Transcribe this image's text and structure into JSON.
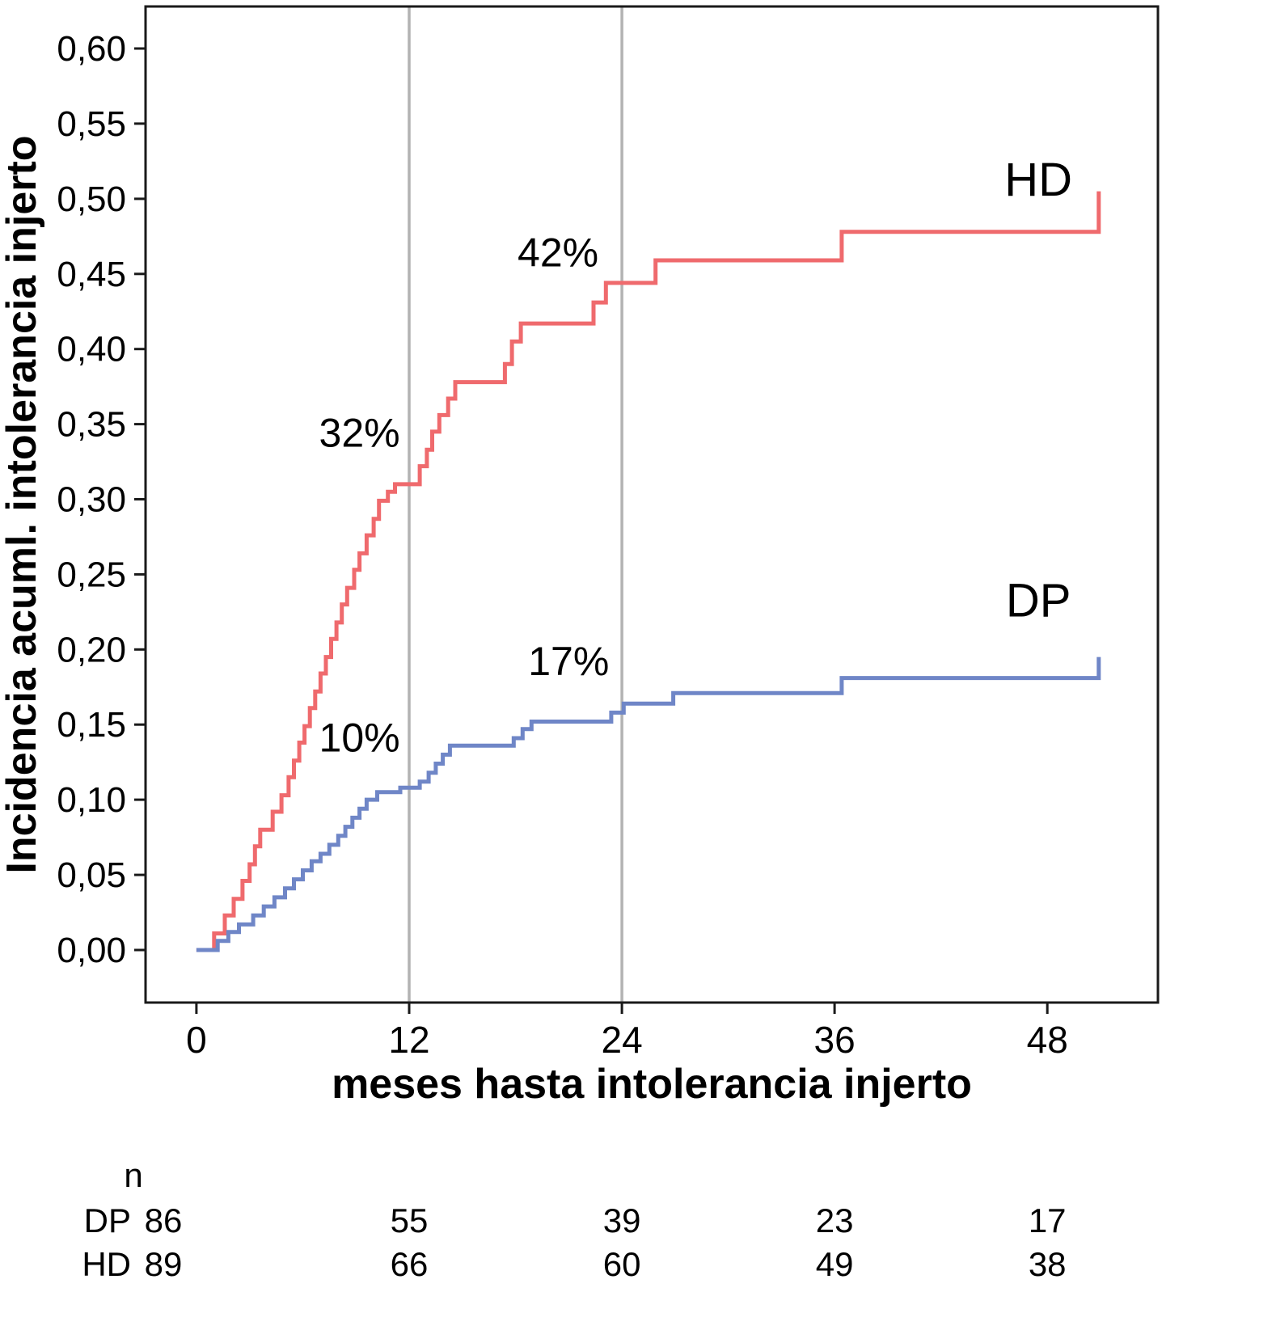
{
  "chart_data": {
    "type": "line",
    "subtype": "kaplan-meier-step",
    "title": "",
    "xlabel": "meses hasta intolerancia injerto",
    "ylabel": "Incidencia acuml. intolerancia injerto",
    "xlim": [
      -2.87,
      54.24
    ],
    "ylim": [
      -0.035,
      0.628
    ],
    "grid": "vertical-only",
    "gridlines_x": [
      12,
      24
    ],
    "gridline_color": "#b3b3b3",
    "frame_color": "#1a1a1a",
    "x_ticks": [
      0,
      12,
      24,
      36,
      48
    ],
    "x_tick_labels": [
      "0",
      "12",
      "24",
      "36",
      "48"
    ],
    "y_ticks": [
      0.0,
      0.05,
      0.1,
      0.15,
      0.2,
      0.25,
      0.3,
      0.35,
      0.4,
      0.45,
      0.5,
      0.55,
      0.6
    ],
    "y_tick_labels": [
      "0,00",
      "0,05",
      "0,10",
      "0,15",
      "0,20",
      "0,25",
      "0,30",
      "0,35",
      "0,40",
      "0,45",
      "0,50",
      "0,55",
      "0,60"
    ],
    "legend_position": "inline-right",
    "series": [
      {
        "name": "HD",
        "color": "#ef6a6d",
        "label_pos": {
          "x": 47.5,
          "y": 0.502
        },
        "points": [
          [
            0,
            0
          ],
          [
            1,
            0.011
          ],
          [
            1.6,
            0.023
          ],
          [
            2.1,
            0.034
          ],
          [
            2.6,
            0.046
          ],
          [
            3.0,
            0.057
          ],
          [
            3.3,
            0.069
          ],
          [
            3.6,
            0.08
          ],
          [
            4.3,
            0.092
          ],
          [
            4.8,
            0.103
          ],
          [
            5.2,
            0.115
          ],
          [
            5.5,
            0.126
          ],
          [
            5.8,
            0.138
          ],
          [
            6.1,
            0.149
          ],
          [
            6.4,
            0.161
          ],
          [
            6.7,
            0.172
          ],
          [
            7.0,
            0.184
          ],
          [
            7.3,
            0.195
          ],
          [
            7.6,
            0.207
          ],
          [
            7.9,
            0.218
          ],
          [
            8.2,
            0.23
          ],
          [
            8.5,
            0.241
          ],
          [
            8.9,
            0.253
          ],
          [
            9.2,
            0.264
          ],
          [
            9.6,
            0.276
          ],
          [
            10.0,
            0.287
          ],
          [
            10.3,
            0.299
          ],
          [
            10.8,
            0.305
          ],
          [
            11.2,
            0.31
          ],
          [
            12.6,
            0.322
          ],
          [
            13.0,
            0.333
          ],
          [
            13.3,
            0.345
          ],
          [
            13.7,
            0.356
          ],
          [
            14.2,
            0.367
          ],
          [
            14.6,
            0.378
          ],
          [
            17.4,
            0.39
          ],
          [
            17.8,
            0.405
          ],
          [
            18.3,
            0.417
          ],
          [
            22.4,
            0.431
          ],
          [
            23.1,
            0.444
          ],
          [
            25.9,
            0.459
          ],
          [
            36.4,
            0.478
          ],
          [
            50.9,
            0.505
          ]
        ]
      },
      {
        "name": "DP",
        "color": "#6f86c7",
        "label_pos": {
          "x": 47.5,
          "y": 0.222
        },
        "points": [
          [
            0,
            0
          ],
          [
            1.2,
            0.006
          ],
          [
            1.8,
            0.012
          ],
          [
            2.4,
            0.017
          ],
          [
            3.2,
            0.023
          ],
          [
            3.8,
            0.029
          ],
          [
            4.4,
            0.035
          ],
          [
            5.0,
            0.041
          ],
          [
            5.5,
            0.047
          ],
          [
            6.0,
            0.053
          ],
          [
            6.5,
            0.059
          ],
          [
            7.0,
            0.064
          ],
          [
            7.5,
            0.07
          ],
          [
            8.0,
            0.076
          ],
          [
            8.4,
            0.082
          ],
          [
            8.8,
            0.088
          ],
          [
            9.2,
            0.094
          ],
          [
            9.6,
            0.1
          ],
          [
            10.2,
            0.105
          ],
          [
            11.5,
            0.108
          ],
          [
            12.6,
            0.112
          ],
          [
            13.1,
            0.118
          ],
          [
            13.5,
            0.124
          ],
          [
            13.9,
            0.13
          ],
          [
            14.3,
            0.136
          ],
          [
            17.9,
            0.141
          ],
          [
            18.4,
            0.147
          ],
          [
            18.9,
            0.152
          ],
          [
            23.4,
            0.158
          ],
          [
            24.1,
            0.164
          ],
          [
            26.9,
            0.171
          ],
          [
            36.4,
            0.181
          ],
          [
            50.9,
            0.195
          ]
        ]
      }
    ],
    "annotations": [
      {
        "text": "42%",
        "x": 20.4,
        "y": 0.455
      },
      {
        "text": "32%",
        "x": 9.2,
        "y": 0.335
      },
      {
        "text": "17%",
        "x": 21.0,
        "y": 0.183
      },
      {
        "text": "10%",
        "x": 9.2,
        "y": 0.132
      }
    ],
    "risk_table": {
      "header": "n",
      "times": [
        0,
        12,
        24,
        36,
        48
      ],
      "rows": [
        {
          "label": "DP",
          "counts": [
            "86",
            "55",
            "39",
            "23",
            "17"
          ]
        },
        {
          "label": "HD",
          "counts": [
            "89",
            "66",
            "60",
            "49",
            "38"
          ]
        }
      ]
    }
  }
}
